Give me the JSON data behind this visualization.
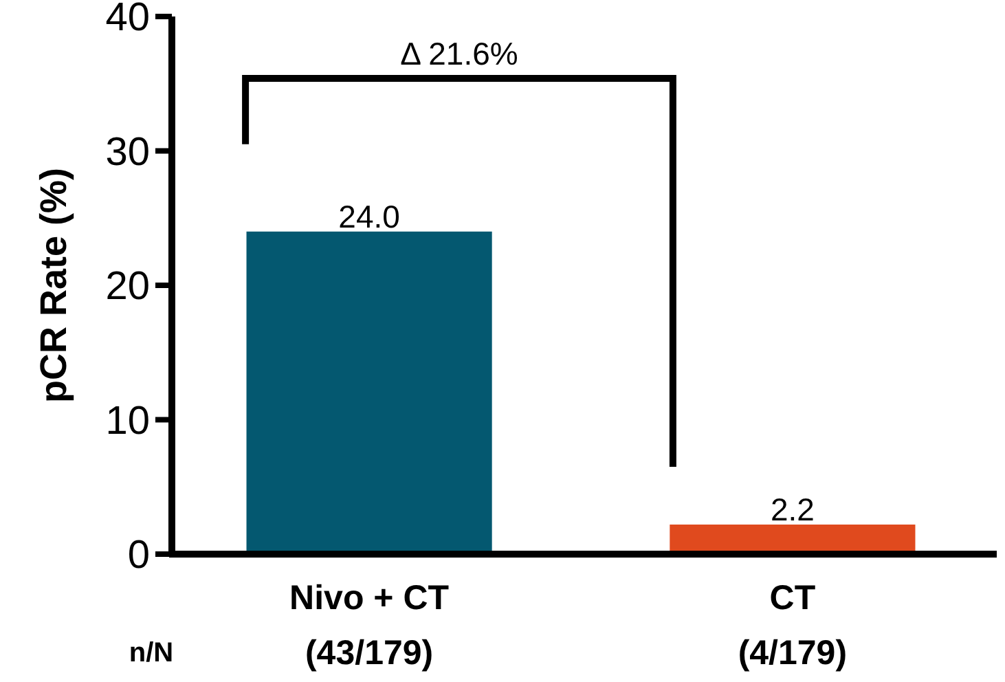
{
  "chart_data": {
    "type": "bar",
    "ylabel": "pCR Rate (%)",
    "categories": [
      "Nivo + CT\n(43/179)",
      "CT\n(4/179)"
    ],
    "values": [
      24.0,
      2.2
    ],
    "value_labels": [
      "24.0",
      "2.2"
    ],
    "colors": [
      "#045870",
      "#e04a1e"
    ],
    "ylim": [
      0,
      40
    ],
    "yticks": [
      0,
      10,
      20,
      30,
      40
    ],
    "grid": false,
    "annotations": [
      "Δ 21.6%",
      "n/N"
    ]
  }
}
